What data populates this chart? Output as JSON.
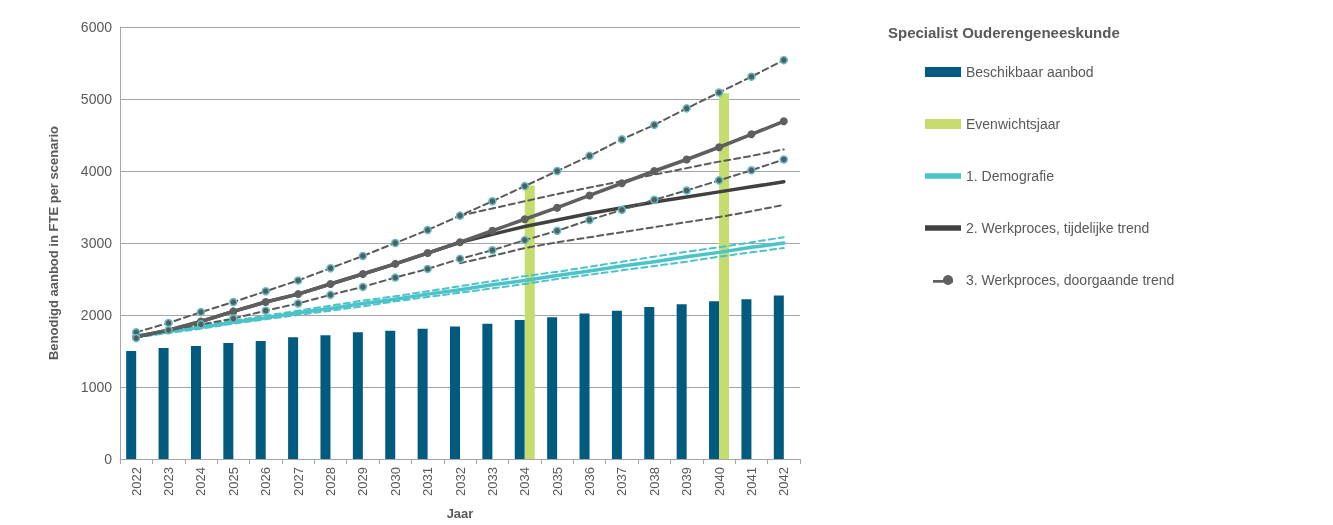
{
  "chart_data": {
    "type": "bar",
    "legend_title": "Specialist Ouderengeneeskunde",
    "xlabel": "Jaar",
    "ylabel": "Benodigd aanbod in FTE per scenario",
    "categories": [
      "2022",
      "2023",
      "2024",
      "2025",
      "2026",
      "2027",
      "2028",
      "2029",
      "2030",
      "2031",
      "2032",
      "2033",
      "2034",
      "2035",
      "2036",
      "2037",
      "2038",
      "2039",
      "2040",
      "2041",
      "2042"
    ],
    "series": [
      {
        "name": "Beschikbaar aanbod",
        "color": "#005b7f",
        "values": [
          1500,
          1540,
          1570,
          1610,
          1640,
          1690,
          1720,
          1760,
          1780,
          1810,
          1840,
          1880,
          1930,
          1970,
          2020,
          2060,
          2110,
          2150,
          2190,
          2220,
          2270
        ]
      },
      {
        "name": "Evenwichtsjaar",
        "color": "#c5dc6e",
        "values": [
          null,
          null,
          null,
          null,
          null,
          null,
          null,
          null,
          null,
          null,
          null,
          null,
          3800,
          null,
          null,
          null,
          null,
          null,
          5080,
          null,
          null
        ]
      },
      {
        "name": "1. Demografie",
        "type": "line",
        "color": "#4bc3c9",
        "marker": "none",
        "line_style": "solid",
        "values": [
          1700,
          1770,
          1830,
          1900,
          1960,
          2030,
          2090,
          2160,
          2220,
          2290,
          2350,
          2420,
          2480,
          2550,
          2610,
          2680,
          2740,
          2810,
          2870,
          2940,
          3000
        ]
      },
      {
        "type": "line",
        "color": "#4bc3c9",
        "marker": "none",
        "line_style": "dashed",
        "values": [
          1720,
          1790,
          1860,
          1920,
          1990,
          2060,
          2130,
          2200,
          2260,
          2330,
          2400,
          2470,
          2540,
          2600,
          2670,
          2740,
          2810,
          2880,
          2940,
          3010,
          3080
        ]
      },
      {
        "type": "line",
        "color": "#4bc3c9",
        "marker": "none",
        "line_style": "dashed",
        "values": [
          1690,
          1750,
          1810,
          1880,
          1940,
          2000,
          2060,
          2120,
          2190,
          2250,
          2310,
          2370,
          2430,
          2500,
          2560,
          2620,
          2680,
          2740,
          2810,
          2870,
          2930
        ]
      },
      {
        "name": "2. Werkproces, tijdelijke trend",
        "type": "line",
        "color": "#404040",
        "marker": "none",
        "line_style": "solid",
        "values": [
          1700,
          1790,
          1910,
          2050,
          2180,
          2290,
          2430,
          2570,
          2710,
          2860,
          3010,
          3120,
          3230,
          3320,
          3410,
          3490,
          3570,
          3640,
          3710,
          3780,
          3850
        ]
      },
      {
        "type": "line",
        "color": "#5a5a5a",
        "marker": "none",
        "line_style": "dashed",
        "values": [
          null,
          null,
          null,
          null,
          null,
          null,
          null,
          null,
          null,
          null,
          3380,
          3480,
          3580,
          3680,
          3770,
          3860,
          3950,
          4040,
          4130,
          4210,
          4300
        ]
      },
      {
        "type": "line",
        "color": "#5a5a5a",
        "marker": "none",
        "line_style": "dashed",
        "values": [
          null,
          null,
          null,
          null,
          null,
          null,
          null,
          null,
          null,
          null,
          2720,
          2820,
          2930,
          3010,
          3080,
          3150,
          3220,
          3290,
          3360,
          3440,
          3530
        ]
      },
      {
        "name": "3. Werkproces, doorgaande trend",
        "type": "line",
        "color": "#5f5f5f",
        "marker": "circle",
        "line_style": "solid",
        "values": [
          1700,
          1790,
          1910,
          2050,
          2180,
          2290,
          2430,
          2570,
          2710,
          2860,
          3010,
          3170,
          3330,
          3490,
          3660,
          3830,
          4000,
          4160,
          4330,
          4510,
          4690
        ]
      },
      {
        "type": "line",
        "color": "#5a5a5a",
        "marker": "circle",
        "line_style": "dashed",
        "values": [
          1760,
          1890,
          2040,
          2180,
          2330,
          2480,
          2650,
          2820,
          3000,
          3180,
          3380,
          3580,
          3790,
          4000,
          4210,
          4440,
          4640,
          4870,
          5090,
          5310,
          5540
        ]
      },
      {
        "type": "line",
        "color": "#5a5a5a",
        "marker": "circle",
        "line_style": "dashed",
        "values": [
          1680,
          1790,
          1870,
          1950,
          2060,
          2160,
          2280,
          2390,
          2520,
          2640,
          2780,
          2900,
          3040,
          3170,
          3320,
          3460,
          3600,
          3730,
          3870,
          4010,
          4160
        ]
      }
    ],
    "ylim": [
      0,
      6000
    ],
    "yticks": [
      0,
      1000,
      2000,
      3000,
      4000,
      5000,
      6000
    ],
    "grid": "y",
    "legend": "right"
  }
}
